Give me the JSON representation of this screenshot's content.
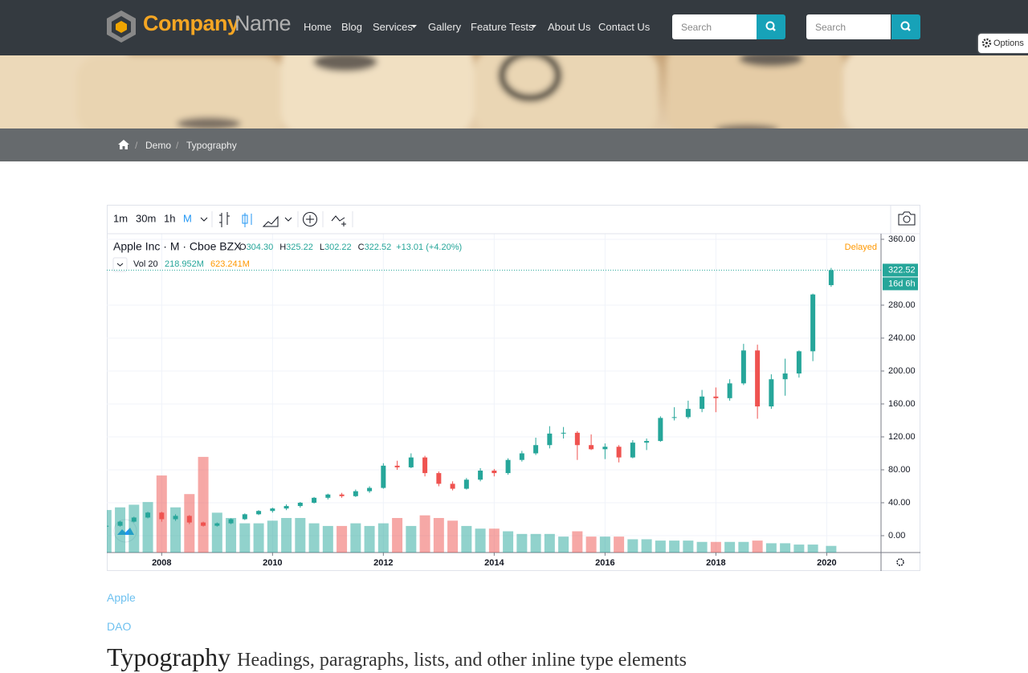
{
  "header": {
    "brand": [
      "Company",
      "Name"
    ],
    "nav": [
      "Home",
      "Blog",
      "Services",
      "Gallery",
      "Feature Tests",
      "About Us",
      "Contact Us"
    ],
    "search": [
      "Search",
      "Search"
    ],
    "options": "Options"
  },
  "breadcrumb": [
    "Demo",
    "Typography"
  ],
  "toolbar": [
    "1m",
    "30m",
    "1h",
    "M"
  ],
  "chart_data": {
    "type": "candlestick",
    "symbol": "Apple Inc · M · Cboe BZX",
    "legend_keys": [
      "O",
      "H",
      "L",
      "C"
    ],
    "last_labels": [
      "304.30",
      "325.22",
      "302.22",
      "322.52"
    ],
    "change": "+13.01 (+4.20%)",
    "volume_title": "Vol 20",
    "volume_labels": [
      "218.952M",
      "623.241M"
    ],
    "status": "Delayed",
    "countdown": "16d 6h",
    "up_color": "#26a69a",
    "down_color": "#ef5350",
    "x": [
      2007,
      2007.25,
      2007.5,
      2007.75,
      2008,
      2008.25,
      2008.5,
      2008.75,
      2009,
      2009.25,
      2009.5,
      2009.75,
      2010,
      2010.25,
      2010.5,
      2010.75,
      2011,
      2011.25,
      2011.5,
      2011.75,
      2012,
      2012.25,
      2012.5,
      2012.75,
      2013,
      2013.25,
      2013.5,
      2013.75,
      2014,
      2014.25,
      2014.5,
      2014.75,
      2015,
      2015.25,
      2015.5,
      2015.75,
      2016,
      2016.25,
      2016.5,
      2016.75,
      2017,
      2017.25,
      2017.5,
      2017.75,
      2018,
      2018.25,
      2018.5,
      2018.75,
      2019,
      2019.25,
      2019.5,
      2019.75,
      2020.08
    ],
    "candles": [
      [
        11,
        13,
        10,
        12
      ],
      [
        12,
        18,
        11,
        17
      ],
      [
        17,
        23,
        16,
        22
      ],
      [
        22,
        29,
        21,
        28
      ],
      [
        28,
        29,
        17,
        20
      ],
      [
        20,
        26,
        18,
        24
      ],
      [
        24,
        25,
        14,
        16
      ],
      [
        16,
        17,
        11,
        12
      ],
      [
        12,
        16,
        11,
        15
      ],
      [
        15,
        21,
        14,
        20
      ],
      [
        20,
        27,
        19,
        26
      ],
      [
        26,
        31,
        25,
        30
      ],
      [
        30,
        34,
        28,
        33
      ],
      [
        33,
        38,
        31,
        36
      ],
      [
        36,
        41,
        34,
        40
      ],
      [
        40,
        47,
        39,
        46
      ],
      [
        46,
        51,
        44,
        50
      ],
      [
        50,
        52,
        46,
        48
      ],
      [
        48,
        56,
        47,
        54
      ],
      [
        54,
        60,
        52,
        58
      ],
      [
        58,
        88,
        57,
        85
      ],
      [
        85,
        91,
        80,
        83
      ],
      [
        83,
        100,
        82,
        95
      ],
      [
        95,
        97,
        72,
        76
      ],
      [
        76,
        78,
        60,
        63
      ],
      [
        63,
        66,
        55,
        57
      ],
      [
        57,
        70,
        56,
        68
      ],
      [
        68,
        82,
        66,
        79
      ],
      [
        79,
        81,
        72,
        76
      ],
      [
        76,
        94,
        74,
        92
      ],
      [
        92,
        103,
        90,
        100
      ],
      [
        100,
        119,
        98,
        110
      ],
      [
        110,
        133,
        106,
        124
      ],
      [
        124,
        132,
        118,
        125
      ],
      [
        125,
        127,
        92,
        110
      ],
      [
        110,
        123,
        104,
        105
      ],
      [
        105,
        112,
        93,
        108
      ],
      [
        108,
        110,
        89,
        95
      ],
      [
        95,
        116,
        94,
        113
      ],
      [
        113,
        118,
        104,
        115
      ],
      [
        115,
        145,
        114,
        143
      ],
      [
        143,
        156,
        140,
        144
      ],
      [
        144,
        164,
        142,
        154
      ],
      [
        154,
        177,
        150,
        169
      ],
      [
        169,
        180,
        150,
        167
      ],
      [
        167,
        190,
        164,
        185
      ],
      [
        185,
        233,
        183,
        225
      ],
      [
        225,
        232,
        142,
        157
      ],
      [
        157,
        196,
        154,
        190
      ],
      [
        190,
        215,
        170,
        197
      ],
      [
        197,
        225,
        192,
        224
      ],
      [
        224,
        294,
        212,
        293
      ],
      [
        304.3,
        325.22,
        302.22,
        322.52
      ]
    ],
    "volume": [
      1600,
      1700,
      1800,
      1900,
      2900,
      1700,
      2200,
      3600,
      1500,
      1300,
      1100,
      1100,
      1200,
      1300,
      1300,
      1100,
      1000,
      1000,
      1100,
      1000,
      1100,
      1300,
      1000,
      1400,
      1300,
      1200,
      1000,
      900,
      900,
      800,
      700,
      700,
      700,
      600,
      800,
      600,
      600,
      600,
      500,
      500,
      450,
      450,
      450,
      400,
      400,
      400,
      400,
      450,
      350,
      350,
      300,
      300,
      250
    ],
    "volume_ylim": [
      0,
      12000
    ],
    "xlim": [
      2007.01,
      2020.98
    ],
    "xticks": [
      2008,
      2010,
      2012,
      2014,
      2016,
      2018,
      2020
    ],
    "ylim": [
      -20.5,
      366.8
    ],
    "yticks": [
      {
        "value": 0,
        "label": "0.00"
      },
      {
        "value": 40,
        "label": "40.00"
      },
      {
        "value": 80,
        "label": "80.00"
      },
      {
        "value": 120,
        "label": "120.00"
      },
      {
        "value": 160,
        "label": "160.00"
      },
      {
        "value": 200,
        "label": "200.00"
      },
      {
        "value": 240,
        "label": "240.00"
      },
      {
        "value": 280,
        "label": "280.00"
      },
      {
        "value": 360,
        "label": "360.00"
      }
    ],
    "grid": true
  },
  "links": [
    "Apple",
    "DAO"
  ],
  "heading": {
    "title": "Typography",
    "subtitle": "Headings, paragraphs, lists, and other inline type elements"
  }
}
